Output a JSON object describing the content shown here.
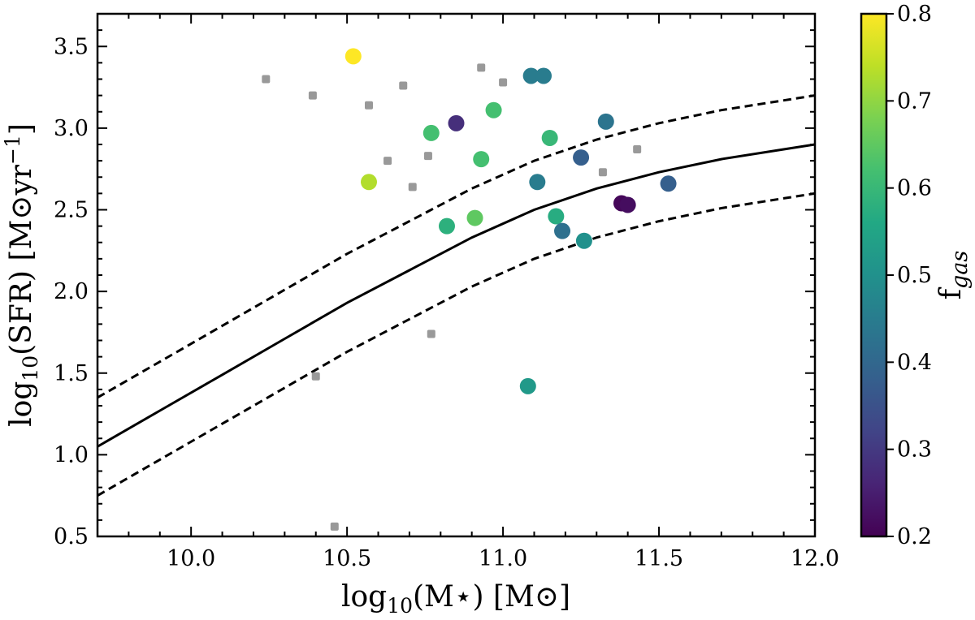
{
  "chart_data": {
    "type": "scatter",
    "xlabel": "log10(M⋆) [M⊙]",
    "ylabel": "log10(SFR) [M⊙yr−1]",
    "xlabel_parts": {
      "main": "log",
      "sub": "10",
      "rest": "(M⋆) [M⊙]"
    },
    "ylabel_parts": {
      "main": "log",
      "sub": "10",
      "rest": "(SFR) [M⊙yr",
      "sup": "−1",
      "end": "]"
    },
    "xlim": [
      9.7,
      12.0
    ],
    "ylim": [
      0.5,
      3.7
    ],
    "x_ticks": [
      "10.0",
      "10.5",
      "11.0",
      "11.5",
      "12.0"
    ],
    "x_tick_values": [
      10.0,
      10.5,
      11.0,
      11.5,
      12.0
    ],
    "y_ticks": [
      "0.5",
      "1.0",
      "1.5",
      "2.0",
      "2.5",
      "3.0",
      "3.5"
    ],
    "y_tick_values": [
      0.5,
      1.0,
      1.5,
      2.0,
      2.5,
      3.0,
      3.5
    ],
    "colorbar": {
      "label_main": "f",
      "label_sub": "gas",
      "range": [
        0.2,
        0.8
      ],
      "ticks": [
        "0.2",
        "0.3",
        "0.4",
        "0.5",
        "0.6",
        "0.7",
        "0.8"
      ],
      "tick_values": [
        0.2,
        0.3,
        0.4,
        0.5,
        0.6,
        0.7,
        0.8
      ],
      "colormap": "viridis"
    },
    "colored_points": [
      {
        "x": 10.52,
        "y": 3.44,
        "fgas": 0.8
      },
      {
        "x": 10.57,
        "y": 2.67,
        "fgas": 0.73
      },
      {
        "x": 10.77,
        "y": 2.97,
        "fgas": 0.62
      },
      {
        "x": 10.82,
        "y": 2.4,
        "fgas": 0.58
      },
      {
        "x": 10.85,
        "y": 3.03,
        "fgas": 0.28
      },
      {
        "x": 10.91,
        "y": 2.45,
        "fgas": 0.65
      },
      {
        "x": 10.93,
        "y": 2.81,
        "fgas": 0.62
      },
      {
        "x": 10.97,
        "y": 3.11,
        "fgas": 0.62
      },
      {
        "x": 11.08,
        "y": 1.42,
        "fgas": 0.52
      },
      {
        "x": 11.09,
        "y": 3.32,
        "fgas": 0.45
      },
      {
        "x": 11.11,
        "y": 2.67,
        "fgas": 0.45
      },
      {
        "x": 11.13,
        "y": 3.32,
        "fgas": 0.45
      },
      {
        "x": 11.15,
        "y": 2.94,
        "fgas": 0.6
      },
      {
        "x": 11.17,
        "y": 2.46,
        "fgas": 0.57
      },
      {
        "x": 11.19,
        "y": 2.37,
        "fgas": 0.42
      },
      {
        "x": 11.25,
        "y": 2.82,
        "fgas": 0.38
      },
      {
        "x": 11.26,
        "y": 2.31,
        "fgas": 0.5
      },
      {
        "x": 11.33,
        "y": 3.04,
        "fgas": 0.43
      },
      {
        "x": 11.38,
        "y": 2.54,
        "fgas": 0.21
      },
      {
        "x": 11.4,
        "y": 2.53,
        "fgas": 0.22
      },
      {
        "x": 11.53,
        "y": 2.66,
        "fgas": 0.38
      }
    ],
    "gray_points": [
      {
        "x": 10.24,
        "y": 3.3
      },
      {
        "x": 10.39,
        "y": 3.2
      },
      {
        "x": 10.4,
        "y": 1.48
      },
      {
        "x": 10.46,
        "y": 0.56
      },
      {
        "x": 10.57,
        "y": 3.14
      },
      {
        "x": 10.63,
        "y": 2.8
      },
      {
        "x": 10.68,
        "y": 3.26
      },
      {
        "x": 10.71,
        "y": 2.64
      },
      {
        "x": 10.76,
        "y": 2.83
      },
      {
        "x": 10.77,
        "y": 1.74
      },
      {
        "x": 10.93,
        "y": 3.37
      },
      {
        "x": 11.0,
        "y": 3.28
      },
      {
        "x": 11.32,
        "y": 2.73
      },
      {
        "x": 11.43,
        "y": 2.87
      }
    ],
    "main_sequence": {
      "x": [
        9.7,
        9.9,
        10.1,
        10.3,
        10.5,
        10.7,
        10.9,
        11.1,
        11.3,
        11.5,
        11.7,
        11.9,
        12.0
      ],
      "y": [
        1.05,
        1.27,
        1.49,
        1.71,
        1.93,
        2.13,
        2.33,
        2.5,
        2.63,
        2.73,
        2.81,
        2.87,
        2.9
      ],
      "scatter_offset": 0.3
    },
    "color_map": {
      "0.0": "#440154",
      "0.1": "#482475",
      "0.2": "#414487",
      "0.3": "#355f8d",
      "0.4": "#2a788e",
      "0.5": "#21918c",
      "0.6": "#22a884",
      "0.7": "#44bf70",
      "0.8": "#7ad151",
      "0.9": "#bddf26",
      "1.0": "#fde725"
    },
    "gray_color": "#999999"
  }
}
